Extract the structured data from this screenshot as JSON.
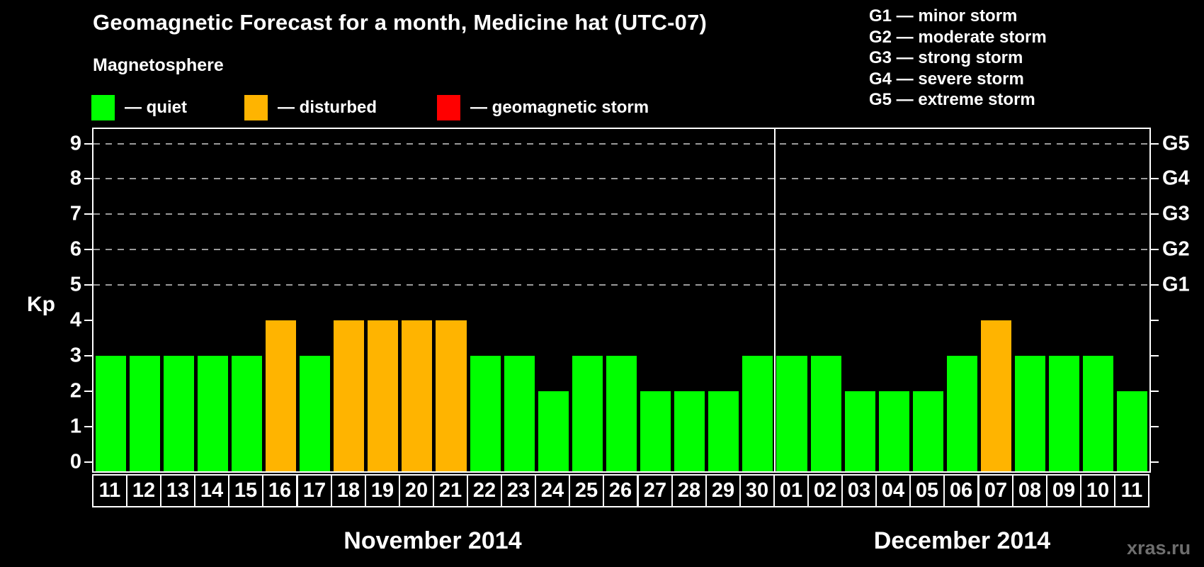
{
  "title": "Geomagnetic Forecast for a month, Medicine hat (UTC-07)",
  "subtitle": "Magnetosphere",
  "legend": {
    "items": [
      {
        "key": "quiet",
        "label": "— quiet",
        "color": "#00ff00"
      },
      {
        "key": "disturbed",
        "label": "— disturbed",
        "color": "#ffb400"
      },
      {
        "key": "storm",
        "label": "— geomagnetic storm",
        "color": "#ff0000"
      }
    ]
  },
  "g_scale_legend": [
    "G1 — minor storm",
    "G2 — moderate storm",
    "G3 — strong storm",
    "G4 — severe storm",
    "G5 — extreme storm"
  ],
  "watermark": "xras.ru",
  "colors": {
    "quiet": "#00ff00",
    "disturbed": "#ffb400",
    "storm": "#ff0000",
    "grid": "#9a9a9a",
    "axis": "#ffffff",
    "background": "#000000"
  },
  "chart_data": {
    "type": "bar",
    "title": "Geomagnetic Forecast for a month, Medicine hat (UTC-07)",
    "ylabel": "Kp",
    "ylim": [
      0,
      9
    ],
    "yticks": [
      0,
      1,
      2,
      3,
      4,
      5,
      6,
      7,
      8,
      9
    ],
    "gridlines_at": [
      5,
      6,
      7,
      8,
      9
    ],
    "right_axis_labels": [
      {
        "kp": 5,
        "label": "G1"
      },
      {
        "kp": 6,
        "label": "G2"
      },
      {
        "kp": 7,
        "label": "G3"
      },
      {
        "kp": 8,
        "label": "G4"
      },
      {
        "kp": 9,
        "label": "G5"
      }
    ],
    "months": [
      {
        "label": "November 2014",
        "days": [
          {
            "day": "11",
            "kp": 3,
            "state": "quiet"
          },
          {
            "day": "12",
            "kp": 3,
            "state": "quiet"
          },
          {
            "day": "13",
            "kp": 3,
            "state": "quiet"
          },
          {
            "day": "14",
            "kp": 3,
            "state": "quiet"
          },
          {
            "day": "15",
            "kp": 3,
            "state": "quiet"
          },
          {
            "day": "16",
            "kp": 4,
            "state": "disturbed"
          },
          {
            "day": "17",
            "kp": 3,
            "state": "quiet"
          },
          {
            "day": "18",
            "kp": 4,
            "state": "disturbed"
          },
          {
            "day": "19",
            "kp": 4,
            "state": "disturbed"
          },
          {
            "day": "20",
            "kp": 4,
            "state": "disturbed"
          },
          {
            "day": "21",
            "kp": 4,
            "state": "disturbed"
          },
          {
            "day": "22",
            "kp": 3,
            "state": "quiet"
          },
          {
            "day": "23",
            "kp": 3,
            "state": "quiet"
          },
          {
            "day": "24",
            "kp": 2,
            "state": "quiet"
          },
          {
            "day": "25",
            "kp": 3,
            "state": "quiet"
          },
          {
            "day": "26",
            "kp": 3,
            "state": "quiet"
          },
          {
            "day": "27",
            "kp": 2,
            "state": "quiet"
          },
          {
            "day": "28",
            "kp": 2,
            "state": "quiet"
          },
          {
            "day": "29",
            "kp": 2,
            "state": "quiet"
          },
          {
            "day": "30",
            "kp": 3,
            "state": "quiet"
          }
        ]
      },
      {
        "label": "December 2014",
        "days": [
          {
            "day": "01",
            "kp": 3,
            "state": "quiet"
          },
          {
            "day": "02",
            "kp": 3,
            "state": "quiet"
          },
          {
            "day": "03",
            "kp": 2,
            "state": "quiet"
          },
          {
            "day": "04",
            "kp": 2,
            "state": "quiet"
          },
          {
            "day": "05",
            "kp": 2,
            "state": "quiet"
          },
          {
            "day": "06",
            "kp": 3,
            "state": "quiet"
          },
          {
            "day": "07",
            "kp": 4,
            "state": "disturbed"
          },
          {
            "day": "08",
            "kp": 3,
            "state": "quiet"
          },
          {
            "day": "09",
            "kp": 3,
            "state": "quiet"
          },
          {
            "day": "10",
            "kp": 3,
            "state": "quiet"
          },
          {
            "day": "11",
            "kp": 2,
            "state": "quiet"
          }
        ]
      }
    ]
  }
}
